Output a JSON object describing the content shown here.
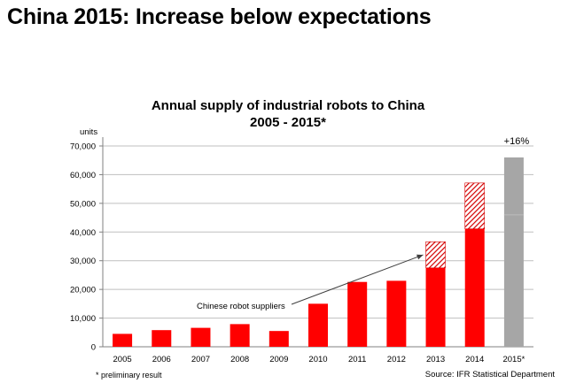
{
  "slide_title": "China 2015: Increase below expectations",
  "footnote": "* preliminary result",
  "source": "Source: IFR Statistical Department",
  "colors": {
    "bar": "#ff0000",
    "hatch": "#d40000",
    "forecast": "#a6a6a6"
  },
  "chart_data": {
    "type": "bar",
    "title": "Annual supply of industrial robots to China",
    "subtitle": "2005 - 2015*",
    "ylabel": "units",
    "xlabel": "",
    "ylim": [
      0,
      70000
    ],
    "yticks": [
      0,
      10000,
      20000,
      30000,
      40000,
      50000,
      60000,
      70000
    ],
    "ytick_labels": [
      "0",
      "10,000",
      "20,000",
      "30,000",
      "40,000",
      "50,000",
      "60,000",
      "70,000"
    ],
    "grid": true,
    "categories": [
      "2005",
      "2006",
      "2007",
      "2008",
      "2009",
      "2010",
      "2011",
      "2012",
      "2013",
      "2014",
      "2015*"
    ],
    "values": [
      4500,
      5800,
      6600,
      7900,
      5500,
      15000,
      22600,
      23000,
      36600,
      57100,
      66000
    ],
    "chinese_supplier_share": [
      null,
      null,
      null,
      null,
      null,
      null,
      null,
      null,
      9100,
      16000,
      null
    ],
    "forecast_index": 10,
    "annotations": [
      {
        "text": "Chinese robot suppliers",
        "points_to": "2013"
      },
      {
        "text": "+16%",
        "category": "2015*"
      }
    ]
  }
}
